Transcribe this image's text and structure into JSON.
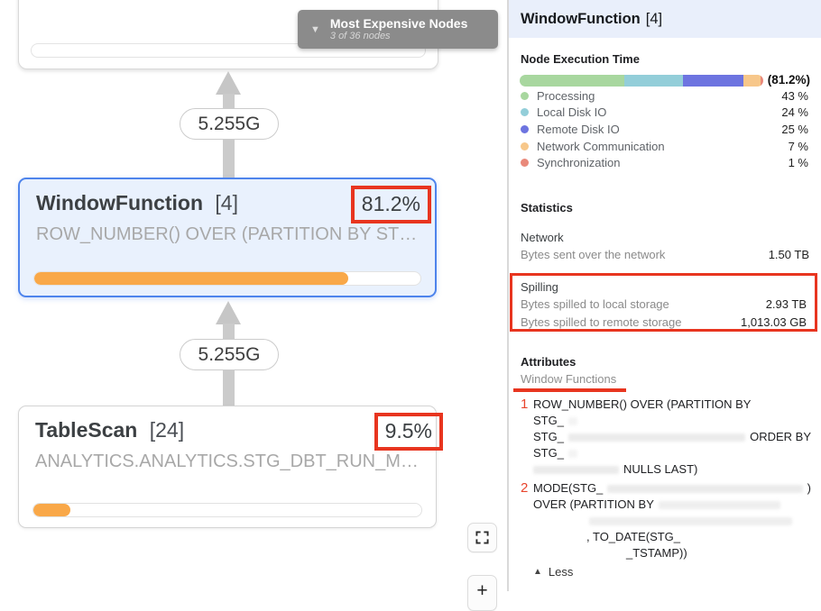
{
  "tooltip": {
    "title": "Most Expensive Nodes",
    "subtitle": "3 of 36 nodes"
  },
  "edges": {
    "labels": [
      "5.255G",
      "5.255G"
    ]
  },
  "nodes": [
    {
      "name": "WindowFunction",
      "id": "[4]",
      "percent": "81.2%",
      "percent_value": 81.2,
      "subtitle": "ROW_NUMBER() OVER (PARTITION BY ST…"
    },
    {
      "name": "TableScan",
      "id": "[24]",
      "percent": "9.5%",
      "percent_value": 9.5,
      "subtitle": "ANALYTICS.ANALYTICS.STG_DBT_RUN_M…"
    }
  ],
  "canvas_buttons": {
    "zoom_in": "+"
  },
  "panel": {
    "header": {
      "name": "WindowFunction",
      "id": "[4]"
    },
    "execution": {
      "title": "Node Execution Time",
      "total": "(81.2%)",
      "segments": [
        {
          "key": "processing",
          "color": "#a8d79f",
          "pct": 43
        },
        {
          "key": "local-disk-io",
          "color": "#93ced9",
          "pct": 24
        },
        {
          "key": "remote-disk-io",
          "color": "#6d74e0",
          "pct": 25
        },
        {
          "key": "network-communication",
          "color": "#f7c78a",
          "pct": 7
        },
        {
          "key": "synchronization",
          "color": "#e9897a",
          "pct": 1
        }
      ],
      "legend": [
        {
          "label": "Processing",
          "value": "43 %",
          "color": "#a8d79f"
        },
        {
          "label": "Local Disk IO",
          "value": "24 %",
          "color": "#93ced9"
        },
        {
          "label": "Remote Disk IO",
          "value": "25 %",
          "color": "#6d74e0"
        },
        {
          "label": "Network Communication",
          "value": "7 %",
          "color": "#f7c78a"
        },
        {
          "label": "Synchronization",
          "value": "1 %",
          "color": "#e9897a"
        }
      ]
    },
    "statistics": {
      "title": "Statistics",
      "network_group": "Network",
      "network_row": {
        "label": "Bytes sent over the network",
        "value": "1.50 TB"
      },
      "spilling_group": "Spilling",
      "spilling_rows": [
        {
          "label": "Bytes spilled to local storage",
          "value": "2.93 TB"
        },
        {
          "label": "Bytes spilled to remote storage",
          "value": "1,013.03 GB"
        }
      ]
    },
    "attributes": {
      "title": "Attributes",
      "group": "Window Functions",
      "item1": {
        "num": "1",
        "l1": "ROW_NUMBER() OVER (PARTITION BY",
        "l2": "STG_",
        "l3a": "STG_",
        "l3b": "ORDER BY",
        "l4": "STG_",
        "l5": "NULLS LAST)"
      },
      "item2": {
        "num": "2",
        "l1a": "MODE(STG_",
        "l1b": ")",
        "l2": "OVER (PARTITION BY",
        "l4": ", TO_DATE(STG_",
        "l5": "_TSTAMP))"
      },
      "less": "Less"
    }
  },
  "colors": {
    "annotation_red": "#e8351f",
    "progress_orange": "#f9a848",
    "selected_border_blue": "#4e84ec"
  }
}
